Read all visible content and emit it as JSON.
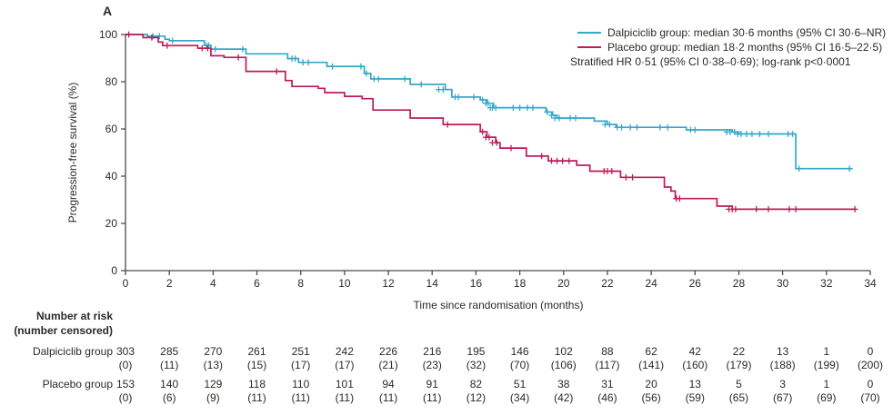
{
  "figure": {
    "panel_label": "A"
  },
  "chart_data": {
    "type": "line",
    "subtype": "kaplan-meier-step",
    "title": "",
    "xlabel": "Time since randomisation (months)",
    "ylabel": "Progression-free survival (%)",
    "xlim": [
      0,
      34
    ],
    "ylim": [
      0,
      100
    ],
    "xticks": [
      0,
      2,
      4,
      6,
      8,
      10,
      12,
      14,
      16,
      18,
      20,
      22,
      24,
      26,
      28,
      30,
      32,
      34
    ],
    "yticks": [
      0,
      20,
      40,
      60,
      80,
      100
    ],
    "grid": "off",
    "legend_position": "top-right",
    "annotation": "Stratified HR 0·51 (95% CI 0·38–0·69); log-rank p<0·0001",
    "colors": {
      "dalpiciclib": "#35a7c9",
      "placebo": "#bc1c57",
      "axis": "#4b4a45",
      "text": "#2b2a26"
    },
    "series": [
      {
        "name": "Dalpiciclib group",
        "legend_label": "Dalpiciclib group: median 30·6 months (95% CI 30·6–NR)",
        "median_months": 30.6,
        "ci": "30·6–NR",
        "color": "#35a7c9",
        "end_time": 33.2,
        "steps": [
          [
            0,
            100
          ],
          [
            1.0,
            99.3
          ],
          [
            1.8,
            98.0
          ],
          [
            2.0,
            97.4
          ],
          [
            3.6,
            95.4
          ],
          [
            3.9,
            93.8
          ],
          [
            5.5,
            91.8
          ],
          [
            7.4,
            89.8
          ],
          [
            7.9,
            88.2
          ],
          [
            9.2,
            86.5
          ],
          [
            10.9,
            83.5
          ],
          [
            11.2,
            81.2
          ],
          [
            13.0,
            78.9
          ],
          [
            14.6,
            76.7
          ],
          [
            14.9,
            73.5
          ],
          [
            16.2,
            72.3
          ],
          [
            16.5,
            70.9
          ],
          [
            16.8,
            69.0
          ],
          [
            19.2,
            67.2
          ],
          [
            19.5,
            65.8
          ],
          [
            19.7,
            64.6
          ],
          [
            21.4,
            63.3
          ],
          [
            22.0,
            61.9
          ],
          [
            22.4,
            60.7
          ],
          [
            25.6,
            59.6
          ],
          [
            27.7,
            58.7
          ],
          [
            28.0,
            57.9
          ],
          [
            30.6,
            43.2
          ]
        ],
        "censors": [
          [
            1.25,
            99.3
          ],
          [
            1.55,
            99.3
          ],
          [
            2.15,
            97.4
          ],
          [
            3.7,
            95.4
          ],
          [
            3.8,
            95.4
          ],
          [
            4.1,
            93.8
          ],
          [
            5.35,
            93.8
          ],
          [
            7.6,
            89.8
          ],
          [
            7.75,
            89.8
          ],
          [
            8.1,
            88.2
          ],
          [
            8.35,
            88.2
          ],
          [
            9.45,
            86.5
          ],
          [
            10.75,
            86.5
          ],
          [
            11.0,
            83.5
          ],
          [
            11.35,
            81.2
          ],
          [
            11.55,
            81.2
          ],
          [
            12.75,
            81.2
          ],
          [
            13.5,
            78.9
          ],
          [
            14.3,
            76.7
          ],
          [
            14.5,
            76.7
          ],
          [
            15.05,
            73.5
          ],
          [
            15.2,
            73.5
          ],
          [
            15.9,
            73.5
          ],
          [
            16.3,
            72.3
          ],
          [
            16.45,
            70.9
          ],
          [
            16.55,
            70.9
          ],
          [
            16.65,
            69.0
          ],
          [
            16.75,
            69.0
          ],
          [
            16.9,
            69.0
          ],
          [
            17.7,
            69.0
          ],
          [
            18.0,
            69.0
          ],
          [
            18.35,
            69.0
          ],
          [
            18.6,
            69.0
          ],
          [
            19.25,
            67.2
          ],
          [
            19.45,
            65.8
          ],
          [
            19.6,
            64.6
          ],
          [
            19.8,
            64.6
          ],
          [
            20.3,
            64.6
          ],
          [
            20.55,
            64.6
          ],
          [
            21.9,
            61.9
          ],
          [
            22.1,
            61.9
          ],
          [
            22.45,
            60.7
          ],
          [
            22.65,
            60.7
          ],
          [
            23.05,
            60.7
          ],
          [
            23.35,
            60.7
          ],
          [
            24.4,
            60.7
          ],
          [
            24.75,
            60.7
          ],
          [
            25.8,
            59.6
          ],
          [
            26.0,
            59.6
          ],
          [
            27.45,
            58.7
          ],
          [
            27.6,
            58.7
          ],
          [
            27.8,
            58.7
          ],
          [
            27.95,
            57.9
          ],
          [
            28.1,
            57.9
          ],
          [
            28.35,
            57.9
          ],
          [
            28.6,
            57.9
          ],
          [
            28.95,
            57.9
          ],
          [
            29.35,
            57.9
          ],
          [
            30.25,
            57.9
          ],
          [
            30.45,
            57.9
          ],
          [
            30.75,
            43.2
          ],
          [
            33.05,
            43.2
          ]
        ]
      },
      {
        "name": "Placebo group",
        "legend_label": "Placebo group: median 18·2 months (95% CI 16·5–22·5)",
        "median_months": 18.2,
        "ci": "16·5–22·5",
        "color": "#bc1c57",
        "end_time": 33.35,
        "steps": [
          [
            0,
            100
          ],
          [
            0.8,
            98.7
          ],
          [
            1.5,
            96.8
          ],
          [
            1.7,
            95.3
          ],
          [
            3.3,
            94.2
          ],
          [
            3.9,
            91.0
          ],
          [
            4.5,
            90.3
          ],
          [
            5.5,
            84.4
          ],
          [
            7.3,
            80.5
          ],
          [
            7.6,
            78.0
          ],
          [
            8.8,
            77.2
          ],
          [
            9.1,
            75.4
          ],
          [
            10.0,
            73.8
          ],
          [
            10.8,
            72.8
          ],
          [
            11.3,
            68.0
          ],
          [
            13.0,
            64.6
          ],
          [
            14.5,
            61.9
          ],
          [
            16.2,
            58.8
          ],
          [
            16.5,
            56.5
          ],
          [
            16.9,
            54.2
          ],
          [
            17.1,
            51.9
          ],
          [
            18.3,
            48.5
          ],
          [
            19.3,
            46.5
          ],
          [
            20.6,
            44.6
          ],
          [
            21.2,
            42.1
          ],
          [
            22.6,
            39.5
          ],
          [
            24.6,
            35.4
          ],
          [
            24.9,
            33.7
          ],
          [
            25.1,
            30.5
          ],
          [
            27.0,
            27.3
          ],
          [
            27.7,
            26.0
          ]
        ],
        "censors": [
          [
            0.15,
            100
          ],
          [
            1.2,
            98.7
          ],
          [
            1.9,
            95.3
          ],
          [
            3.5,
            94.2
          ],
          [
            3.75,
            94.2
          ],
          [
            5.15,
            90.3
          ],
          [
            6.9,
            84.4
          ],
          [
            14.7,
            61.9
          ],
          [
            16.3,
            58.8
          ],
          [
            16.45,
            56.5
          ],
          [
            16.6,
            56.5
          ],
          [
            16.75,
            54.2
          ],
          [
            16.95,
            54.2
          ],
          [
            17.6,
            51.9
          ],
          [
            19.0,
            48.5
          ],
          [
            19.45,
            46.5
          ],
          [
            19.7,
            46.5
          ],
          [
            19.95,
            46.5
          ],
          [
            20.25,
            46.5
          ],
          [
            21.85,
            42.1
          ],
          [
            22.0,
            42.1
          ],
          [
            22.2,
            42.1
          ],
          [
            22.85,
            39.5
          ],
          [
            23.15,
            39.5
          ],
          [
            25.15,
            30.5
          ],
          [
            25.3,
            30.5
          ],
          [
            27.55,
            26.0
          ],
          [
            27.7,
            26.0
          ],
          [
            27.85,
            26.0
          ],
          [
            28.8,
            26.0
          ],
          [
            29.35,
            26.0
          ],
          [
            30.3,
            26.0
          ],
          [
            30.6,
            26.0
          ],
          [
            33.3,
            26.0
          ]
        ]
      }
    ],
    "risk_table": {
      "title_line1": "Number at risk",
      "title_line2": "(number censored)",
      "times": [
        0,
        2,
        4,
        6,
        8,
        10,
        12,
        14,
        16,
        18,
        20,
        22,
        24,
        26,
        28,
        30,
        32,
        34
      ],
      "rows": [
        {
          "label": "Dalpiciclib group",
          "at_risk": [
            303,
            285,
            270,
            261,
            251,
            242,
            226,
            216,
            195,
            146,
            102,
            88,
            62,
            42,
            22,
            13,
            1,
            0
          ],
          "censored": [
            "(0)",
            "(11)",
            "(13)",
            "(15)",
            "(17)",
            "(17)",
            "(21)",
            "(23)",
            "(32)",
            "(70)",
            "(106)",
            "(117)",
            "(141)",
            "(160)",
            "(179)",
            "(188)",
            "(199)",
            "(200)"
          ]
        },
        {
          "label": "Placebo group",
          "at_risk": [
            153,
            140,
            129,
            118,
            110,
            101,
            94,
            91,
            82,
            51,
            38,
            31,
            20,
            13,
            5,
            3,
            1,
            0
          ],
          "censored": [
            "(0)",
            "(6)",
            "(9)",
            "(11)",
            "(11)",
            "(11)",
            "(11)",
            "(11)",
            "(12)",
            "(34)",
            "(42)",
            "(46)",
            "(56)",
            "(59)",
            "(65)",
            "(67)",
            "(69)",
            "(70)"
          ]
        }
      ]
    }
  }
}
